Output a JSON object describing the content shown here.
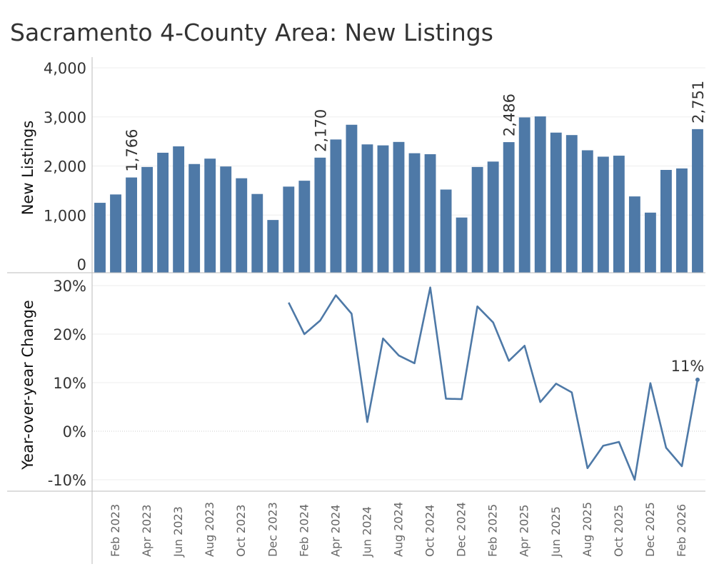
{
  "title": "Sacramento 4-County Area: New Listings",
  "colors": {
    "series": "#4e79a7",
    "axis": "#bbbbbb",
    "grid": "#eeeeee",
    "zero": "#cccccc",
    "text": "#333333"
  },
  "chart_data": [
    {
      "type": "bar",
      "panel": "top",
      "ylabel": "New Listings",
      "ylim": [
        0,
        4000
      ],
      "yticks": [
        0,
        1000,
        2000,
        3000,
        4000
      ],
      "ytick_labels": [
        "0",
        "1,000",
        "2,000",
        "3,000",
        "4,000"
      ],
      "categories": [
        "Jan 2023",
        "Feb 2023",
        "Mar 2023",
        "Apr 2023",
        "May 2023",
        "Jun 2023",
        "Jul 2023",
        "Aug 2023",
        "Sep 2023",
        "Oct 2023",
        "Nov 2023",
        "Dec 2023",
        "Jan 2024",
        "Feb 2024",
        "Mar 2024",
        "Apr 2024",
        "May 2024",
        "Jun 2024",
        "Jul 2024",
        "Aug 2024",
        "Sep 2024",
        "Oct 2024",
        "Nov 2024",
        "Dec 2024",
        "Jan 2025",
        "Feb 2025",
        "Mar 2025",
        "Apr 2025",
        "May 2025",
        "Jun 2025",
        "Jul 2025",
        "Aug 2025",
        "Sep 2025",
        "Oct 2025",
        "Nov 2025",
        "Dec 2025",
        "Jan 2026",
        "Feb 2026",
        "Mar 2026"
      ],
      "values": [
        1250,
        1420,
        1766,
        1980,
        2270,
        2400,
        2040,
        2150,
        1990,
        1750,
        1430,
        900,
        1580,
        1700,
        2170,
        2540,
        2840,
        2440,
        2420,
        2490,
        2260,
        2240,
        1520,
        950,
        1980,
        2090,
        2486,
        2990,
        3010,
        2680,
        2630,
        2320,
        2190,
        2210,
        1380,
        1050,
        1920,
        1950,
        2751
      ],
      "annotations": [
        {
          "index": 2,
          "label": "1,766"
        },
        {
          "index": 14,
          "label": "2,170"
        },
        {
          "index": 26,
          "label": "2,486"
        },
        {
          "index": 38,
          "label": "2,751"
        }
      ],
      "grid": true
    },
    {
      "type": "line",
      "panel": "bottom",
      "ylabel": "Year-over-year Change",
      "ylim": [
        -11,
        31
      ],
      "yticks": [
        -10,
        0,
        10,
        20,
        30
      ],
      "ytick_labels": [
        "-10%",
        "0%",
        "10%",
        "20%",
        "30%"
      ],
      "categories": [
        "Jan 2023",
        "Feb 2023",
        "Mar 2023",
        "Apr 2023",
        "May 2023",
        "Jun 2023",
        "Jul 2023",
        "Aug 2023",
        "Sep 2023",
        "Oct 2023",
        "Nov 2023",
        "Dec 2023",
        "Jan 2024",
        "Feb 2024",
        "Mar 2024",
        "Apr 2024",
        "May 2024",
        "Jun 2024",
        "Jul 2024",
        "Aug 2024",
        "Sep 2024",
        "Oct 2024",
        "Nov 2024",
        "Dec 2024",
        "Jan 2025",
        "Feb 2025",
        "Mar 2025",
        "Apr 2025",
        "May 2025",
        "Jun 2025",
        "Jul 2025",
        "Aug 2025",
        "Sep 2025",
        "Oct 2025",
        "Nov 2025",
        "Dec 2025",
        "Jan 2026",
        "Feb 2026",
        "Mar 2026"
      ],
      "values": [
        null,
        null,
        null,
        null,
        null,
        null,
        null,
        null,
        null,
        null,
        null,
        null,
        26.5,
        20.0,
        22.8,
        28.0,
        24.2,
        1.9,
        19.1,
        15.6,
        14.0,
        29.6,
        6.7,
        6.6,
        25.7,
        22.4,
        14.5,
        17.6,
        6.0,
        9.8,
        8.0,
        -7.6,
        -3.0,
        -2.2,
        -10.0,
        9.9,
        -3.4,
        -7.2,
        10.6
      ],
      "annotations": [
        {
          "index": 38,
          "label": "11%"
        }
      ],
      "grid": true
    }
  ],
  "x_axis": {
    "tick_labels": [
      {
        "index": 1,
        "label": "Feb 2023"
      },
      {
        "index": 3,
        "label": "Apr 2023"
      },
      {
        "index": 5,
        "label": "Jun 2023"
      },
      {
        "index": 7,
        "label": "Aug 2023"
      },
      {
        "index": 9,
        "label": "Oct 2023"
      },
      {
        "index": 11,
        "label": "Dec 2023"
      },
      {
        "index": 13,
        "label": "Feb 2024"
      },
      {
        "index": 15,
        "label": "Apr 2024"
      },
      {
        "index": 17,
        "label": "Jun 2024"
      },
      {
        "index": 19,
        "label": "Aug 2024"
      },
      {
        "index": 21,
        "label": "Oct 2024"
      },
      {
        "index": 23,
        "label": "Dec 2024"
      },
      {
        "index": 25,
        "label": "Feb 2025"
      },
      {
        "index": 27,
        "label": "Apr 2025"
      },
      {
        "index": 29,
        "label": "Jun 2025"
      },
      {
        "index": 31,
        "label": "Aug 2025"
      },
      {
        "index": 33,
        "label": "Oct 2025"
      },
      {
        "index": 35,
        "label": "Dec 2025"
      },
      {
        "index": 37,
        "label": "Feb 2026"
      }
    ]
  }
}
